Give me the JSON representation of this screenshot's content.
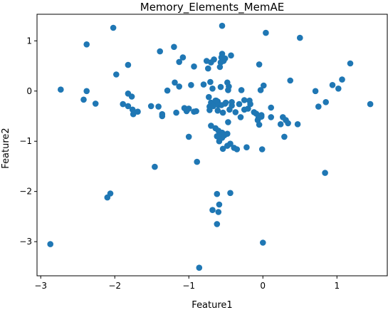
{
  "chart_data": {
    "type": "scatter",
    "title": "Memory_Elements_MemAE",
    "xlabel": "Feature1",
    "ylabel": "Feature2",
    "xlim": [
      -3.05,
      1.68
    ],
    "ylim": [
      -3.68,
      1.53
    ],
    "xticks": [
      -3,
      -2,
      -1,
      0,
      1
    ],
    "xtick_labels": [
      "−3",
      "−2",
      "−1",
      "0",
      "1"
    ],
    "yticks": [
      -3,
      -2,
      -1,
      0,
      1
    ],
    "ytick_labels": [
      "−3",
      "−2",
      "−1",
      "0",
      "1"
    ],
    "grid": false,
    "marker_color": "#1f77b4",
    "points": [
      [
        -2.87,
        -3.05
      ],
      [
        -2.73,
        0.03
      ],
      [
        -2.42,
        -0.17
      ],
      [
        -2.38,
        0.93
      ],
      [
        -2.38,
        0.0
      ],
      [
        -2.26,
        -0.25
      ],
      [
        -2.1,
        -2.12
      ],
      [
        -2.06,
        -2.04
      ],
      [
        -2.02,
        1.26
      ],
      [
        -1.98,
        0.33
      ],
      [
        -1.89,
        -0.26
      ],
      [
        -1.82,
        0.52
      ],
      [
        -1.82,
        -0.05
      ],
      [
        -1.82,
        -0.3
      ],
      [
        -1.77,
        -0.11
      ],
      [
        -1.76,
        -0.37
      ],
      [
        -1.75,
        -0.46
      ],
      [
        -1.69,
        -0.41
      ],
      [
        -1.51,
        -0.3
      ],
      [
        -1.46,
        -1.51
      ],
      [
        -1.41,
        -0.31
      ],
      [
        -1.39,
        0.79
      ],
      [
        -1.36,
        -0.46
      ],
      [
        -1.36,
        -0.5
      ],
      [
        -1.29,
        0.01
      ],
      [
        -1.2,
        0.88
      ],
      [
        -1.19,
        0.17
      ],
      [
        -1.17,
        -0.43
      ],
      [
        -1.13,
        0.09
      ],
      [
        -1.13,
        0.58
      ],
      [
        -1.08,
        0.67
      ],
      [
        -1.06,
        -0.34
      ],
      [
        -1.03,
        -0.4
      ],
      [
        -1.0,
        -0.35
      ],
      [
        -1.0,
        -0.91
      ],
      [
        -0.97,
        0.12
      ],
      [
        -0.93,
        0.49
      ],
      [
        -0.93,
        -0.41
      ],
      [
        -0.9,
        -0.4
      ],
      [
        -0.89,
        -1.41
      ],
      [
        -0.86,
        -3.52
      ],
      [
        -0.8,
        0.13
      ],
      [
        -0.76,
        0.6
      ],
      [
        -0.74,
        0.45
      ],
      [
        -0.73,
        -0.12
      ],
      [
        -0.72,
        -0.31
      ],
      [
        -0.72,
        -0.38
      ],
      [
        -0.71,
        0.18
      ],
      [
        -0.7,
        -0.23
      ],
      [
        -0.7,
        -0.69
      ],
      [
        -0.7,
        0.57
      ],
      [
        -0.68,
        -2.37
      ],
      [
        -0.68,
        0.05
      ],
      [
        -0.67,
        -0.25
      ],
      [
        -0.67,
        -0.3
      ],
      [
        -0.66,
        0.63
      ],
      [
        -0.64,
        -0.19
      ],
      [
        -0.64,
        -0.74
      ],
      [
        -0.63,
        -0.19
      ],
      [
        -0.62,
        -2.05
      ],
      [
        -0.62,
        -2.65
      ],
      [
        -0.62,
        -0.9
      ],
      [
        -0.61,
        -0.21
      ],
      [
        -0.61,
        -0.39
      ],
      [
        -0.6,
        -0.28
      ],
      [
        -0.6,
        -0.79
      ],
      [
        -0.6,
        -2.41
      ],
      [
        -0.59,
        -2.26
      ],
      [
        -0.59,
        -1.0
      ],
      [
        -0.58,
        0.48
      ],
      [
        -0.58,
        -0.89
      ],
      [
        -0.57,
        0.08
      ],
      [
        -0.57,
        0.57
      ],
      [
        -0.56,
        0.67
      ],
      [
        -0.56,
        -0.28
      ],
      [
        -0.55,
        -0.93
      ],
      [
        -0.55,
        1.3
      ],
      [
        -0.55,
        0.74
      ],
      [
        -0.55,
        -0.83
      ],
      [
        -0.54,
        -0.43
      ],
      [
        -0.54,
        -1.15
      ],
      [
        -0.53,
        0.6
      ],
      [
        -0.52,
        -0.88
      ],
      [
        -0.51,
        0.65
      ],
      [
        -0.51,
        -0.25
      ],
      [
        -0.5,
        -0.23
      ],
      [
        -0.48,
        -0.85
      ],
      [
        -0.48,
        -1.09
      ],
      [
        -0.48,
        0.17
      ],
      [
        -0.47,
        0.02
      ],
      [
        -0.47,
        -0.62
      ],
      [
        -0.46,
        0.09
      ],
      [
        -0.45,
        -0.37
      ],
      [
        -0.44,
        -2.03
      ],
      [
        -0.44,
        -1.05
      ],
      [
        -0.43,
        0.71
      ],
      [
        -0.42,
        -0.29
      ],
      [
        -0.42,
        -0.22
      ],
      [
        -0.39,
        -1.13
      ],
      [
        -0.37,
        -0.42
      ],
      [
        -0.35,
        -1.16
      ],
      [
        -0.32,
        -0.26
      ],
      [
        -0.3,
        -0.52
      ],
      [
        -0.29,
        0.02
      ],
      [
        -0.25,
        -0.18
      ],
      [
        -0.25,
        -0.37
      ],
      [
        -0.22,
        -1.12
      ],
      [
        -0.2,
        -0.35
      ],
      [
        -0.18,
        -0.19
      ],
      [
        -0.17,
        -0.26
      ],
      [
        -0.12,
        -0.42
      ],
      [
        -0.09,
        -0.45
      ],
      [
        -0.07,
        -0.58
      ],
      [
        -0.06,
        -0.54
      ],
      [
        -0.05,
        -0.67
      ],
      [
        -0.05,
        0.53
      ],
      [
        -0.04,
        -0.51
      ],
      [
        -0.03,
        0.02
      ],
      [
        -0.02,
        -0.48
      ],
      [
        -0.02,
        -0.51
      ],
      [
        -0.01,
        -1.16
      ],
      [
        0.0,
        -3.02
      ],
      [
        0.01,
        0.11
      ],
      [
        0.04,
        1.16
      ],
      [
        0.11,
        -0.33
      ],
      [
        0.11,
        -0.52
      ],
      [
        0.24,
        -0.66
      ],
      [
        0.27,
        -0.52
      ],
      [
        0.29,
        -0.91
      ],
      [
        0.31,
        -0.58
      ],
      [
        0.34,
        -0.64
      ],
      [
        0.37,
        0.21
      ],
      [
        0.47,
        -0.66
      ],
      [
        0.5,
        1.06
      ],
      [
        0.71,
        0.0
      ],
      [
        0.75,
        -0.31
      ],
      [
        0.84,
        -1.63
      ],
      [
        0.85,
        -0.22
      ],
      [
        0.94,
        0.12
      ],
      [
        1.02,
        0.05
      ],
      [
        1.07,
        0.23
      ],
      [
        1.18,
        0.55
      ],
      [
        1.45,
        -0.26
      ]
    ]
  }
}
